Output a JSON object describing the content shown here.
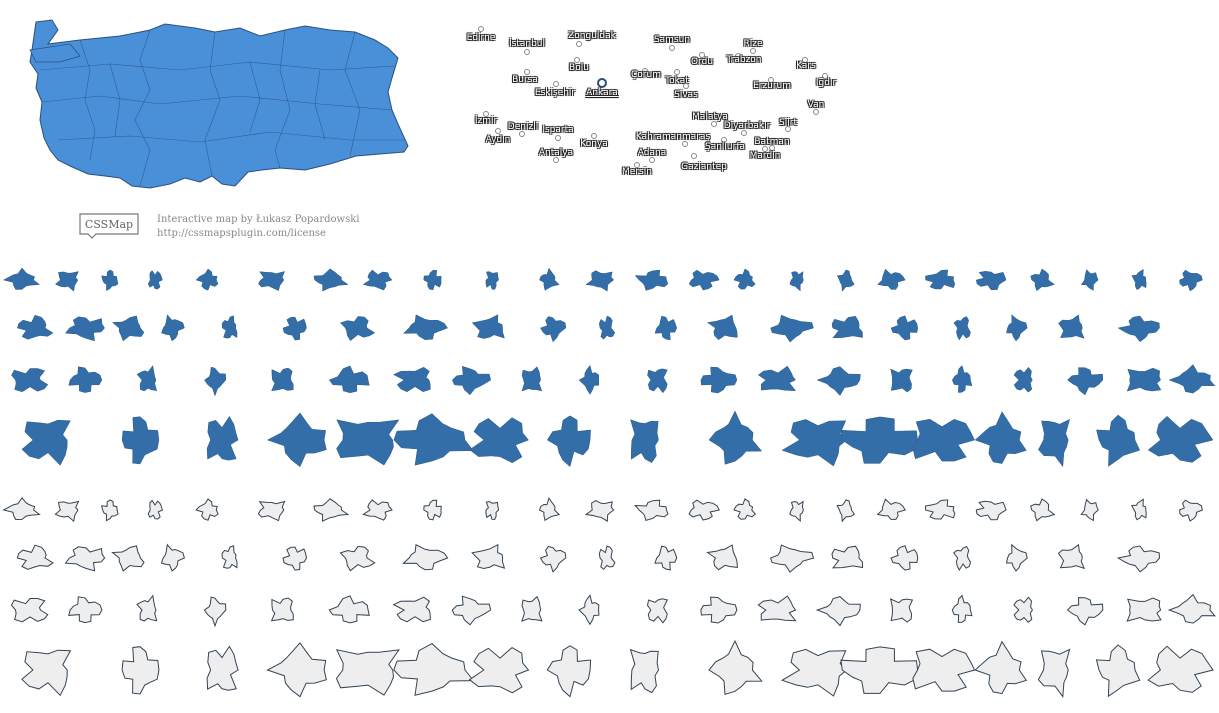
{
  "credits": {
    "logo_text": "CSSMap",
    "line1": "Interactive map by Łukasz Popardowski",
    "line2": "http://cssmapsplugin.com/license"
  },
  "colors": {
    "region_fill": "#4a90d9",
    "region_stroke": "#2a5080",
    "province_hover": "#336ea8",
    "province_idle": "#eeeeee",
    "province_stroke": "#334455"
  },
  "cities": [
    {
      "name": "Edirne"
    },
    {
      "name": "İstanbul"
    },
    {
      "name": "Zonguldak"
    },
    {
      "name": "Samsun"
    },
    {
      "name": "Rize"
    },
    {
      "name": "Bolu"
    },
    {
      "name": "Ordu"
    },
    {
      "name": "Trabzon"
    },
    {
      "name": "Kars"
    },
    {
      "name": "Bursa"
    },
    {
      "name": "Çorum"
    },
    {
      "name": "Tokat"
    },
    {
      "name": "Iğdır"
    },
    {
      "name": "Eskişehir"
    },
    {
      "name": "Ankara",
      "active": true
    },
    {
      "name": "Sivas"
    },
    {
      "name": "Erzurum"
    },
    {
      "name": "Van"
    },
    {
      "name": "İzmir"
    },
    {
      "name": "Denizli"
    },
    {
      "name": "Isparta"
    },
    {
      "name": "Malatya"
    },
    {
      "name": "Diyarbakır"
    },
    {
      "name": "Siirt"
    },
    {
      "name": "Aydın"
    },
    {
      "name": "Kahramanmaraş"
    },
    {
      "name": "Konya"
    },
    {
      "name": "Batman"
    },
    {
      "name": "Şanlıurfa"
    },
    {
      "name": "Antalya"
    },
    {
      "name": "Adana"
    },
    {
      "name": "Mardin"
    },
    {
      "name": "Gaziantep"
    },
    {
      "name": "Mersin"
    }
  ]
}
